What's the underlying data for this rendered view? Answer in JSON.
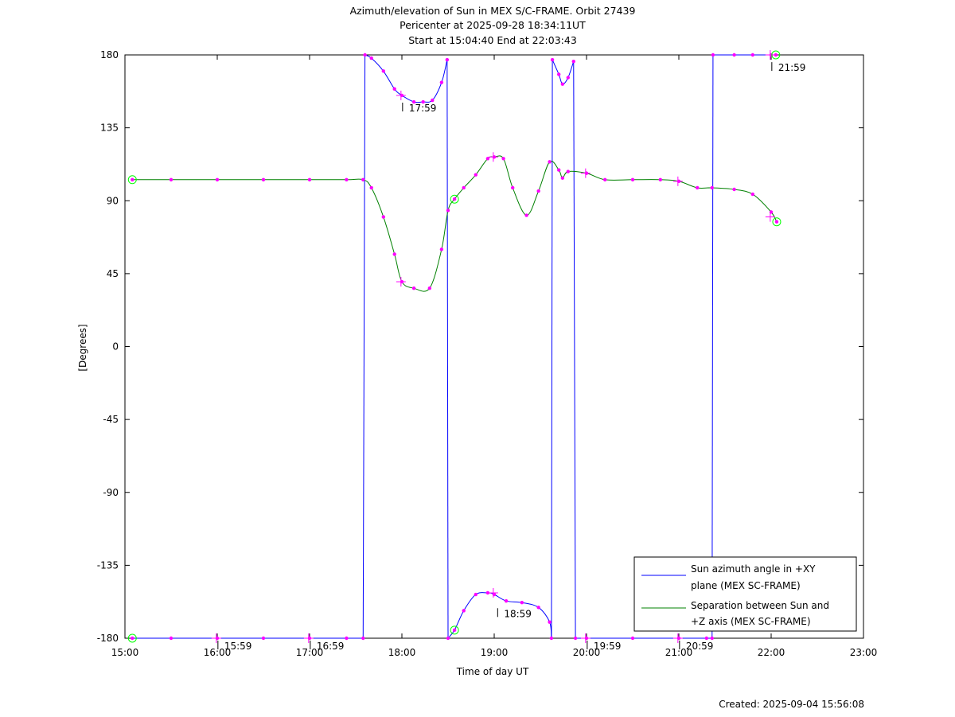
{
  "chart_data": {
    "type": "line",
    "title_lines": [
      "Azimuth/elevation of Sun in MEX S/C-FRAME.  Orbit 27439",
      "Pericenter at 2025-09-28 18:34:11UT",
      "Start at 15:04:40 End at 22:03:43"
    ],
    "xlabel": "Time of day UT",
    "ylabel": "[Degrees]",
    "xlim": [
      15.0,
      23.0
    ],
    "ylim": [
      -180,
      180
    ],
    "x_ticks": [
      15,
      16,
      17,
      18,
      19,
      20,
      21,
      22,
      23
    ],
    "x_tick_labels": [
      "15:00",
      "16:00",
      "17:00",
      "18:00",
      "19:00",
      "20:00",
      "21:00",
      "22:00",
      "23:00"
    ],
    "y_ticks": [
      180,
      135,
      90,
      45,
      0,
      -45,
      -90,
      -135,
      -180
    ],
    "y_tick_labels": [
      "180",
      "135",
      "90",
      "45",
      "0",
      "-45",
      "-90",
      "-135",
      "-180"
    ],
    "grid": false,
    "legend_position": "bottom-right",
    "series": [
      {
        "name": "Sun azimuth angle in +XY plane (MEX SC-FRAME)",
        "legend_lines": [
          "Sun azimuth angle in +XY",
          "plane (MEX SC-FRAME)"
        ],
        "color": "#0000ff",
        "segments": [
          [
            [
              15.08,
              -180
            ],
            [
              15.5,
              -180
            ],
            [
              16.0,
              -180
            ],
            [
              16.5,
              -180
            ],
            [
              17.0,
              -180
            ],
            [
              17.4,
              -180
            ],
            [
              17.58,
              -180
            ]
          ],
          [
            [
              17.6,
              180
            ],
            [
              17.67,
              178
            ],
            [
              17.8,
              170
            ],
            [
              17.92,
              159
            ],
            [
              18.0,
              155
            ],
            [
              18.13,
              151
            ],
            [
              18.23,
              151
            ],
            [
              18.33,
              152
            ],
            [
              18.43,
              163
            ],
            [
              18.49,
              177
            ]
          ],
          [
            [
              18.5,
              -180
            ],
            [
              18.57,
              -175
            ],
            [
              18.67,
              -163
            ],
            [
              18.8,
              -153
            ],
            [
              18.93,
              -152
            ],
            [
              19.0,
              -153
            ],
            [
              19.13,
              -157
            ],
            [
              19.3,
              -158
            ],
            [
              19.48,
              -161
            ],
            [
              19.6,
              -170
            ],
            [
              19.62,
              -180
            ]
          ],
          [
            [
              19.63,
              177
            ],
            [
              19.7,
              168
            ],
            [
              19.74,
              162
            ],
            [
              19.8,
              166
            ],
            [
              19.86,
              176
            ]
          ],
          [
            [
              19.88,
              -180
            ],
            [
              20.0,
              -180
            ],
            [
              20.5,
              -180
            ],
            [
              21.0,
              -180
            ],
            [
              21.3,
              -180
            ],
            [
              21.36,
              -180
            ]
          ],
          [
            [
              21.37,
              180
            ],
            [
              21.6,
              180
            ],
            [
              21.8,
              180
            ],
            [
              22.0,
              180
            ],
            [
              22.05,
              180
            ]
          ]
        ]
      },
      {
        "name": "Separation between Sun and +Z axis (MEX SC-FRAME)",
        "legend_lines": [
          "Separation between Sun and",
          "+Z axis (MEX SC-FRAME)"
        ],
        "color": "#008000",
        "points": [
          [
            15.08,
            103
          ],
          [
            15.5,
            103
          ],
          [
            16.0,
            103
          ],
          [
            16.5,
            103
          ],
          [
            17.0,
            103
          ],
          [
            17.4,
            103
          ],
          [
            17.58,
            103
          ],
          [
            17.67,
            98
          ],
          [
            17.8,
            80
          ],
          [
            17.92,
            57
          ],
          [
            18.0,
            40
          ],
          [
            18.13,
            36
          ],
          [
            18.3,
            36
          ],
          [
            18.43,
            60
          ],
          [
            18.5,
            84
          ],
          [
            18.57,
            91
          ],
          [
            18.67,
            98
          ],
          [
            18.8,
            106
          ],
          [
            18.93,
            116
          ],
          [
            19.0,
            117
          ],
          [
            19.1,
            116
          ],
          [
            19.2,
            98
          ],
          [
            19.35,
            81
          ],
          [
            19.48,
            96
          ],
          [
            19.6,
            114
          ],
          [
            19.7,
            109
          ],
          [
            19.74,
            104
          ],
          [
            19.8,
            108
          ],
          [
            20.0,
            107
          ],
          [
            20.2,
            103
          ],
          [
            20.5,
            103
          ],
          [
            20.8,
            103
          ],
          [
            21.0,
            102
          ],
          [
            21.2,
            98
          ],
          [
            21.36,
            98
          ],
          [
            21.6,
            97
          ],
          [
            21.8,
            94
          ],
          [
            22.0,
            83
          ],
          [
            22.06,
            77
          ]
        ]
      }
    ],
    "annotations": [
      {
        "text": "17:59",
        "x": 17.99,
        "y": 152
      },
      {
        "text": "21:59",
        "x": 21.99,
        "y": 177
      },
      {
        "text": "18:59",
        "x": 19.02,
        "y": -160
      },
      {
        "text": "15:59",
        "x": 15.99,
        "y": -180
      },
      {
        "text": "16:59",
        "x": 16.99,
        "y": -180
      },
      {
        "text": "19:59",
        "x": 19.99,
        "y": -180
      },
      {
        "text": "20:59",
        "x": 20.99,
        "y": -180
      }
    ],
    "hour_markers": [
      [
        15.99,
        -180
      ],
      [
        16.99,
        -180
      ],
      [
        17.99,
        155
      ],
      [
        17.99,
        40
      ],
      [
        18.99,
        -152
      ],
      [
        18.99,
        117
      ],
      [
        19.99,
        -180
      ],
      [
        19.99,
        107
      ],
      [
        20.99,
        -180
      ],
      [
        20.99,
        102
      ],
      [
        21.99,
        180
      ],
      [
        21.99,
        80
      ]
    ],
    "start_end_markers": [
      [
        15.08,
        103
      ],
      [
        15.08,
        -180
      ],
      [
        18.57,
        91
      ],
      [
        18.57,
        -175
      ],
      [
        22.06,
        77
      ],
      [
        22.05,
        180
      ]
    ],
    "created": "Created: 2025-09-04 15:56:08"
  }
}
